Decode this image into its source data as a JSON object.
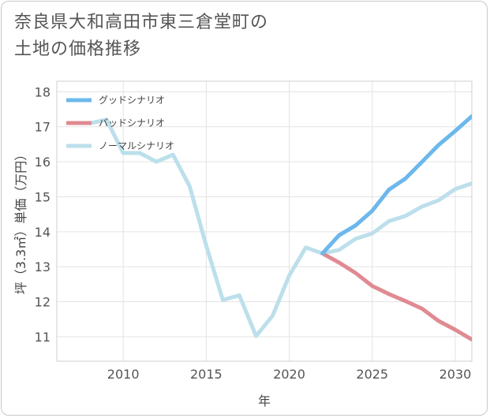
{
  "title": "奈良県大和高田市東三倉堂町の\n土地の価格推移",
  "chart_data": {
    "type": "line",
    "xlabel": "年",
    "ylabel": "坪（3.3㎡）単価（万円）",
    "xlim": [
      2006,
      2031
    ],
    "ylim": [
      10.3,
      18.3
    ],
    "x_ticks": [
      2010,
      2015,
      2020,
      2025,
      2030
    ],
    "y_ticks": [
      11,
      12,
      13,
      14,
      15,
      16,
      17,
      18
    ],
    "legend_position": "top-left",
    "series": [
      {
        "name": "グッドシナリオ",
        "color": "#6cb8ec",
        "x": [
          2022,
          2023,
          2024,
          2025,
          2026,
          2027,
          2028,
          2029,
          2030,
          2031
        ],
        "values": [
          13.38,
          13.9,
          14.18,
          14.6,
          15.2,
          15.52,
          16.0,
          16.48,
          16.88,
          17.3
        ]
      },
      {
        "name": "バッドシナリオ",
        "color": "#e08a92",
        "x": [
          2022,
          2023,
          2024,
          2025,
          2026,
          2027,
          2028,
          2029,
          2030,
          2031
        ],
        "values": [
          13.38,
          13.12,
          12.82,
          12.45,
          12.22,
          12.02,
          11.8,
          11.45,
          11.2,
          10.92
        ]
      },
      {
        "name": "ノーマルシナリオ",
        "color": "#bcdfeb",
        "x": [
          2008,
          2009,
          2010,
          2011,
          2012,
          2013,
          2014,
          2015,
          2016,
          2017,
          2018,
          2019,
          2020,
          2021,
          2022,
          2023,
          2024,
          2025,
          2026,
          2027,
          2028,
          2029,
          2030,
          2031
        ],
        "values": [
          17.1,
          17.2,
          16.25,
          16.25,
          16.0,
          16.2,
          15.3,
          13.6,
          12.05,
          12.18,
          11.02,
          11.6,
          12.75,
          13.55,
          13.38,
          13.48,
          13.8,
          13.95,
          14.3,
          14.45,
          14.72,
          14.9,
          15.22,
          15.38
        ]
      }
    ]
  }
}
